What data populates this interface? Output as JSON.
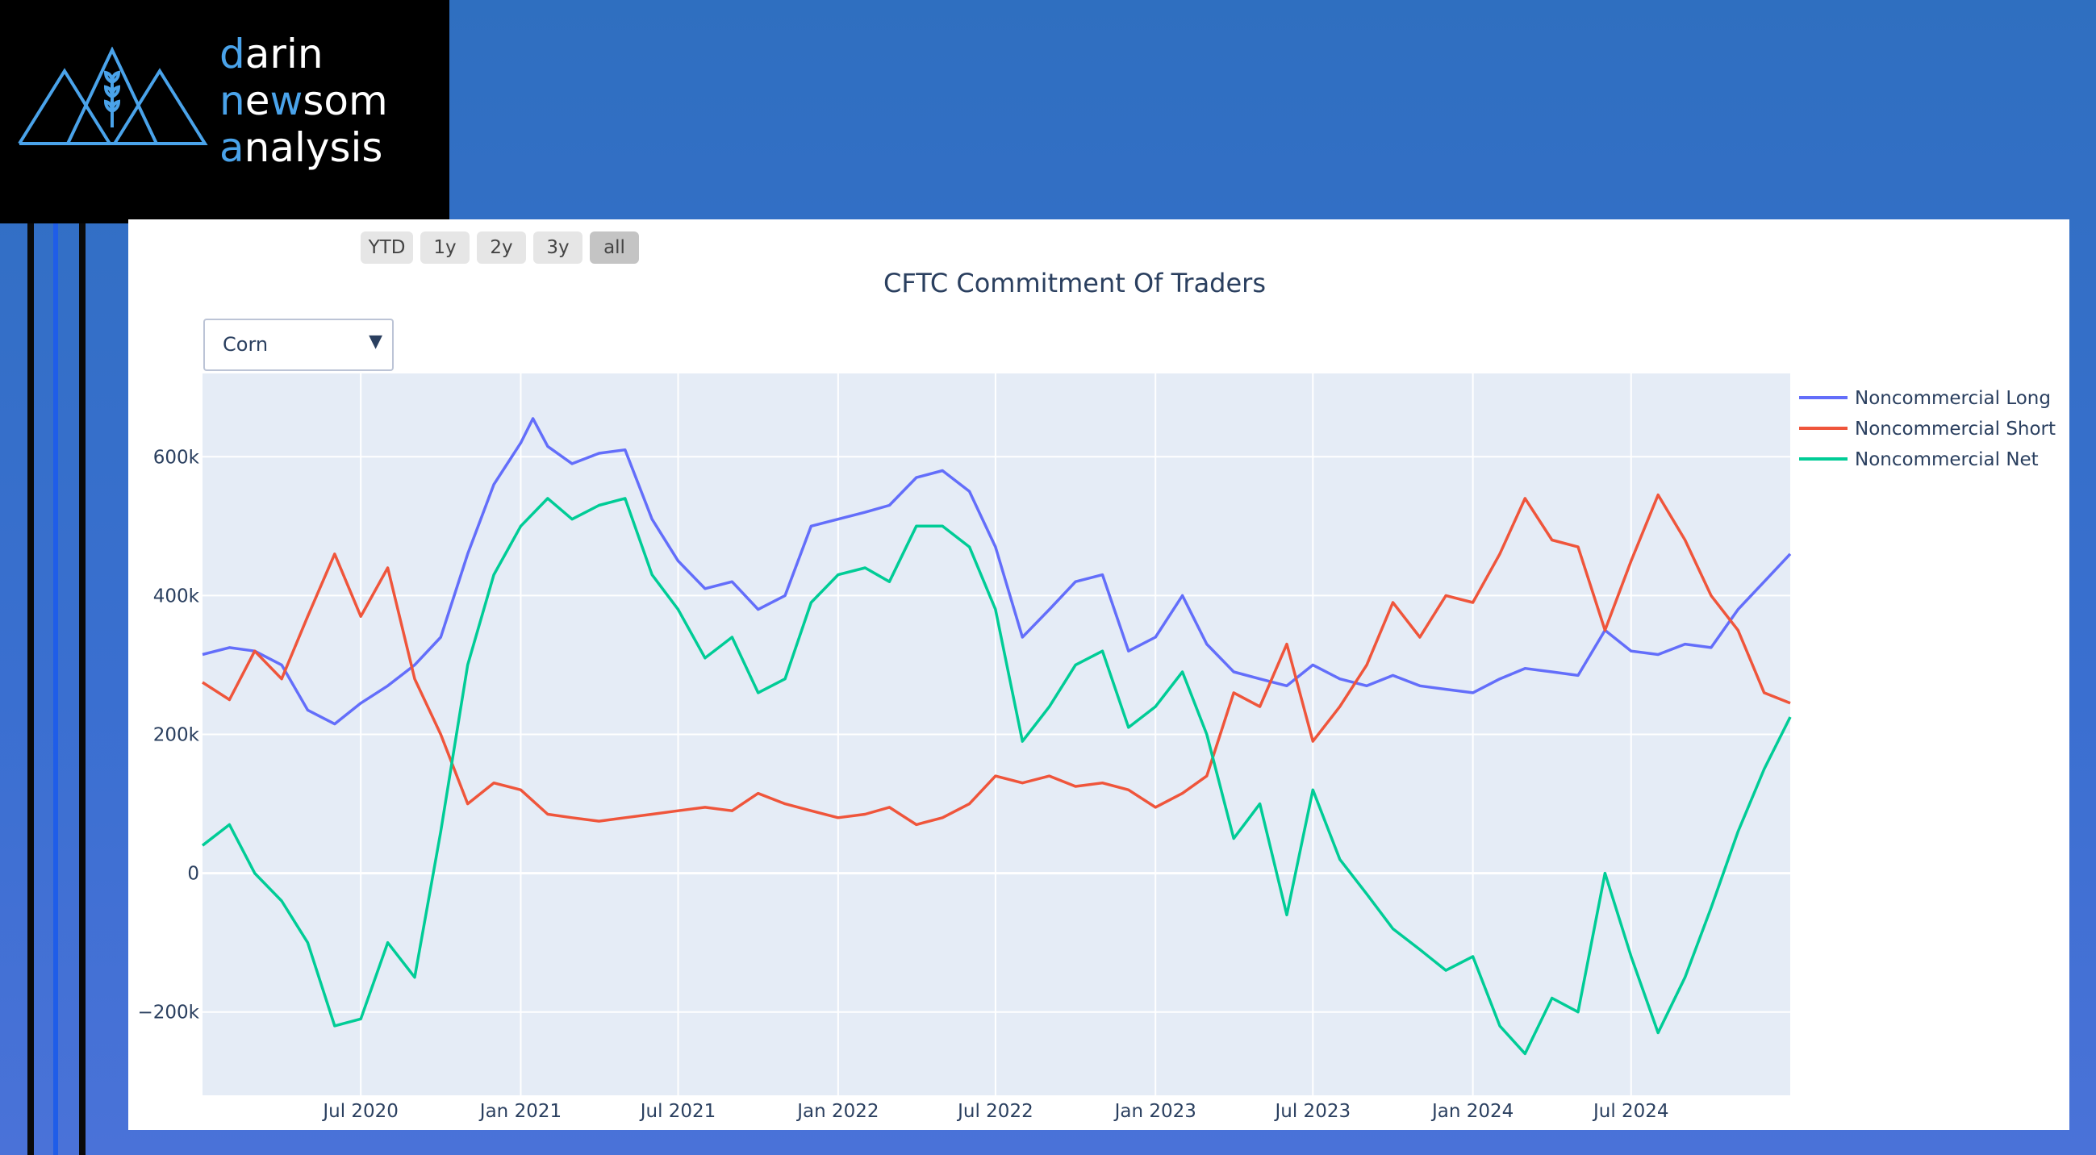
{
  "brand": {
    "lines": [
      {
        "accent": "d",
        "rest": "arin"
      },
      {
        "accent": "n",
        "rest": "e",
        "accent2": "w",
        "rest2": "som"
      },
      {
        "accent": "a",
        "rest": "nalysis"
      }
    ],
    "accent_color": "#4aa3ea"
  },
  "range_selector": {
    "buttons": [
      "YTD",
      "1y",
      "2y",
      "3y",
      "all"
    ],
    "active": "all"
  },
  "dropdown": {
    "selected": "Corn",
    "arrow_icon": "triangle-down-icon"
  },
  "chart_data": {
    "type": "line",
    "title": "CFTC Commitment Of Traders",
    "xlabel": "",
    "ylabel": "",
    "x_range": [
      "2020-01-01",
      "2024-12-31"
    ],
    "ylim": [
      -320000,
      720000
    ],
    "x_ticks": [
      "Jul 2020",
      "Jan 2021",
      "Jul 2021",
      "Jan 2022",
      "Jul 2022",
      "Jan 2023",
      "Jul 2023",
      "Jan 2024",
      "Jul 2024"
    ],
    "y_ticks": [
      "−200k",
      "0",
      "200k",
      "400k",
      "600k"
    ],
    "grid": true,
    "legend": "right",
    "series": [
      {
        "name": "Noncommercial Long",
        "color": "#636efa",
        "points": [
          [
            "2020-01-01",
            315000
          ],
          [
            "2020-02-01",
            325000
          ],
          [
            "2020-03-01",
            320000
          ],
          [
            "2020-04-01",
            300000
          ],
          [
            "2020-05-01",
            235000
          ],
          [
            "2020-06-01",
            215000
          ],
          [
            "2020-07-01",
            245000
          ],
          [
            "2020-08-01",
            270000
          ],
          [
            "2020-09-01",
            300000
          ],
          [
            "2020-10-01",
            340000
          ],
          [
            "2020-11-01",
            460000
          ],
          [
            "2020-12-01",
            560000
          ],
          [
            "2021-01-01",
            620000
          ],
          [
            "2021-01-15",
            655000
          ],
          [
            "2021-02-01",
            615000
          ],
          [
            "2021-03-01",
            590000
          ],
          [
            "2021-04-01",
            605000
          ],
          [
            "2021-05-01",
            610000
          ],
          [
            "2021-06-01",
            510000
          ],
          [
            "2021-07-01",
            450000
          ],
          [
            "2021-08-01",
            410000
          ],
          [
            "2021-09-01",
            420000
          ],
          [
            "2021-10-01",
            380000
          ],
          [
            "2021-11-01",
            400000
          ],
          [
            "2021-12-01",
            500000
          ],
          [
            "2022-01-01",
            510000
          ],
          [
            "2022-02-01",
            520000
          ],
          [
            "2022-03-01",
            530000
          ],
          [
            "2022-04-01",
            570000
          ],
          [
            "2022-05-01",
            580000
          ],
          [
            "2022-06-01",
            550000
          ],
          [
            "2022-07-01",
            470000
          ],
          [
            "2022-08-01",
            340000
          ],
          [
            "2022-09-01",
            380000
          ],
          [
            "2022-10-01",
            420000
          ],
          [
            "2022-11-01",
            430000
          ],
          [
            "2022-12-01",
            320000
          ],
          [
            "2023-01-01",
            340000
          ],
          [
            "2023-02-01",
            400000
          ],
          [
            "2023-03-01",
            330000
          ],
          [
            "2023-04-01",
            290000
          ],
          [
            "2023-05-01",
            280000
          ],
          [
            "2023-06-01",
            270000
          ],
          [
            "2023-07-01",
            300000
          ],
          [
            "2023-08-01",
            280000
          ],
          [
            "2023-09-01",
            270000
          ],
          [
            "2023-10-01",
            285000
          ],
          [
            "2023-11-01",
            270000
          ],
          [
            "2023-12-01",
            265000
          ],
          [
            "2024-01-01",
            260000
          ],
          [
            "2024-02-01",
            280000
          ],
          [
            "2024-03-01",
            295000
          ],
          [
            "2024-04-01",
            290000
          ],
          [
            "2024-05-01",
            285000
          ],
          [
            "2024-06-01",
            350000
          ],
          [
            "2024-07-01",
            320000
          ],
          [
            "2024-08-01",
            315000
          ],
          [
            "2024-09-01",
            330000
          ],
          [
            "2024-10-01",
            325000
          ],
          [
            "2024-11-01",
            380000
          ],
          [
            "2024-12-01",
            420000
          ],
          [
            "2024-12-31",
            460000
          ]
        ]
      },
      {
        "name": "Noncommercial Short",
        "color": "#ef553b",
        "points": [
          [
            "2020-01-01",
            275000
          ],
          [
            "2020-02-01",
            250000
          ],
          [
            "2020-03-01",
            320000
          ],
          [
            "2020-04-01",
            280000
          ],
          [
            "2020-05-01",
            370000
          ],
          [
            "2020-06-01",
            460000
          ],
          [
            "2020-07-01",
            370000
          ],
          [
            "2020-08-01",
            440000
          ],
          [
            "2020-09-01",
            280000
          ],
          [
            "2020-10-01",
            200000
          ],
          [
            "2020-11-01",
            100000
          ],
          [
            "2020-12-01",
            130000
          ],
          [
            "2021-01-01",
            120000
          ],
          [
            "2021-02-01",
            85000
          ],
          [
            "2021-03-01",
            80000
          ],
          [
            "2021-04-01",
            75000
          ],
          [
            "2021-05-01",
            80000
          ],
          [
            "2021-06-01",
            85000
          ],
          [
            "2021-07-01",
            90000
          ],
          [
            "2021-08-01",
            95000
          ],
          [
            "2021-09-01",
            90000
          ],
          [
            "2021-10-01",
            115000
          ],
          [
            "2021-11-01",
            100000
          ],
          [
            "2021-12-01",
            90000
          ],
          [
            "2022-01-01",
            80000
          ],
          [
            "2022-02-01",
            85000
          ],
          [
            "2022-03-01",
            95000
          ],
          [
            "2022-04-01",
            70000
          ],
          [
            "2022-05-01",
            80000
          ],
          [
            "2022-06-01",
            100000
          ],
          [
            "2022-07-01",
            140000
          ],
          [
            "2022-08-01",
            130000
          ],
          [
            "2022-09-01",
            140000
          ],
          [
            "2022-10-01",
            125000
          ],
          [
            "2022-11-01",
            130000
          ],
          [
            "2022-12-01",
            120000
          ],
          [
            "2023-01-01",
            95000
          ],
          [
            "2023-02-01",
            115000
          ],
          [
            "2023-03-01",
            140000
          ],
          [
            "2023-04-01",
            260000
          ],
          [
            "2023-05-01",
            240000
          ],
          [
            "2023-06-01",
            330000
          ],
          [
            "2023-07-01",
            190000
          ],
          [
            "2023-08-01",
            240000
          ],
          [
            "2023-09-01",
            300000
          ],
          [
            "2023-10-01",
            390000
          ],
          [
            "2023-11-01",
            340000
          ],
          [
            "2023-12-01",
            400000
          ],
          [
            "2024-01-01",
            390000
          ],
          [
            "2024-02-01",
            460000
          ],
          [
            "2024-03-01",
            540000
          ],
          [
            "2024-04-01",
            480000
          ],
          [
            "2024-05-01",
            470000
          ],
          [
            "2024-06-01",
            350000
          ],
          [
            "2024-07-01",
            450000
          ],
          [
            "2024-08-01",
            545000
          ],
          [
            "2024-09-01",
            480000
          ],
          [
            "2024-10-01",
            400000
          ],
          [
            "2024-11-01",
            350000
          ],
          [
            "2024-12-01",
            260000
          ],
          [
            "2024-12-31",
            245000
          ]
        ]
      },
      {
        "name": "Noncommercial Net",
        "color": "#00cc96",
        "points": [
          [
            "2020-01-01",
            40000
          ],
          [
            "2020-02-01",
            70000
          ],
          [
            "2020-03-01",
            0
          ],
          [
            "2020-04-01",
            -40000
          ],
          [
            "2020-05-01",
            -100000
          ],
          [
            "2020-06-01",
            -220000
          ],
          [
            "2020-07-01",
            -210000
          ],
          [
            "2020-08-01",
            -100000
          ],
          [
            "2020-09-01",
            -150000
          ],
          [
            "2020-10-01",
            60000
          ],
          [
            "2020-11-01",
            300000
          ],
          [
            "2020-12-01",
            430000
          ],
          [
            "2021-01-01",
            500000
          ],
          [
            "2021-02-01",
            540000
          ],
          [
            "2021-03-01",
            510000
          ],
          [
            "2021-04-01",
            530000
          ],
          [
            "2021-05-01",
            540000
          ],
          [
            "2021-06-01",
            430000
          ],
          [
            "2021-07-01",
            380000
          ],
          [
            "2021-08-01",
            310000
          ],
          [
            "2021-09-01",
            340000
          ],
          [
            "2021-10-01",
            260000
          ],
          [
            "2021-11-01",
            280000
          ],
          [
            "2021-12-01",
            390000
          ],
          [
            "2022-01-01",
            430000
          ],
          [
            "2022-02-01",
            440000
          ],
          [
            "2022-03-01",
            420000
          ],
          [
            "2022-04-01",
            500000
          ],
          [
            "2022-05-01",
            500000
          ],
          [
            "2022-06-01",
            470000
          ],
          [
            "2022-07-01",
            380000
          ],
          [
            "2022-08-01",
            190000
          ],
          [
            "2022-09-01",
            240000
          ],
          [
            "2022-10-01",
            300000
          ],
          [
            "2022-11-01",
            320000
          ],
          [
            "2022-12-01",
            210000
          ],
          [
            "2023-01-01",
            240000
          ],
          [
            "2023-02-01",
            290000
          ],
          [
            "2023-03-01",
            200000
          ],
          [
            "2023-04-01",
            50000
          ],
          [
            "2023-05-01",
            100000
          ],
          [
            "2023-06-01",
            -60000
          ],
          [
            "2023-07-01",
            120000
          ],
          [
            "2023-08-01",
            20000
          ],
          [
            "2023-09-01",
            -30000
          ],
          [
            "2023-10-01",
            -80000
          ],
          [
            "2023-11-01",
            -110000
          ],
          [
            "2023-12-01",
            -140000
          ],
          [
            "2024-01-01",
            -120000
          ],
          [
            "2024-02-01",
            -220000
          ],
          [
            "2024-03-01",
            -260000
          ],
          [
            "2024-04-01",
            -180000
          ],
          [
            "2024-05-01",
            -200000
          ],
          [
            "2024-06-01",
            0
          ],
          [
            "2024-07-01",
            -120000
          ],
          [
            "2024-08-01",
            -230000
          ],
          [
            "2024-09-01",
            -150000
          ],
          [
            "2024-10-01",
            -50000
          ],
          [
            "2024-11-01",
            60000
          ],
          [
            "2024-12-01",
            150000
          ],
          [
            "2024-12-31",
            225000
          ]
        ]
      }
    ]
  }
}
